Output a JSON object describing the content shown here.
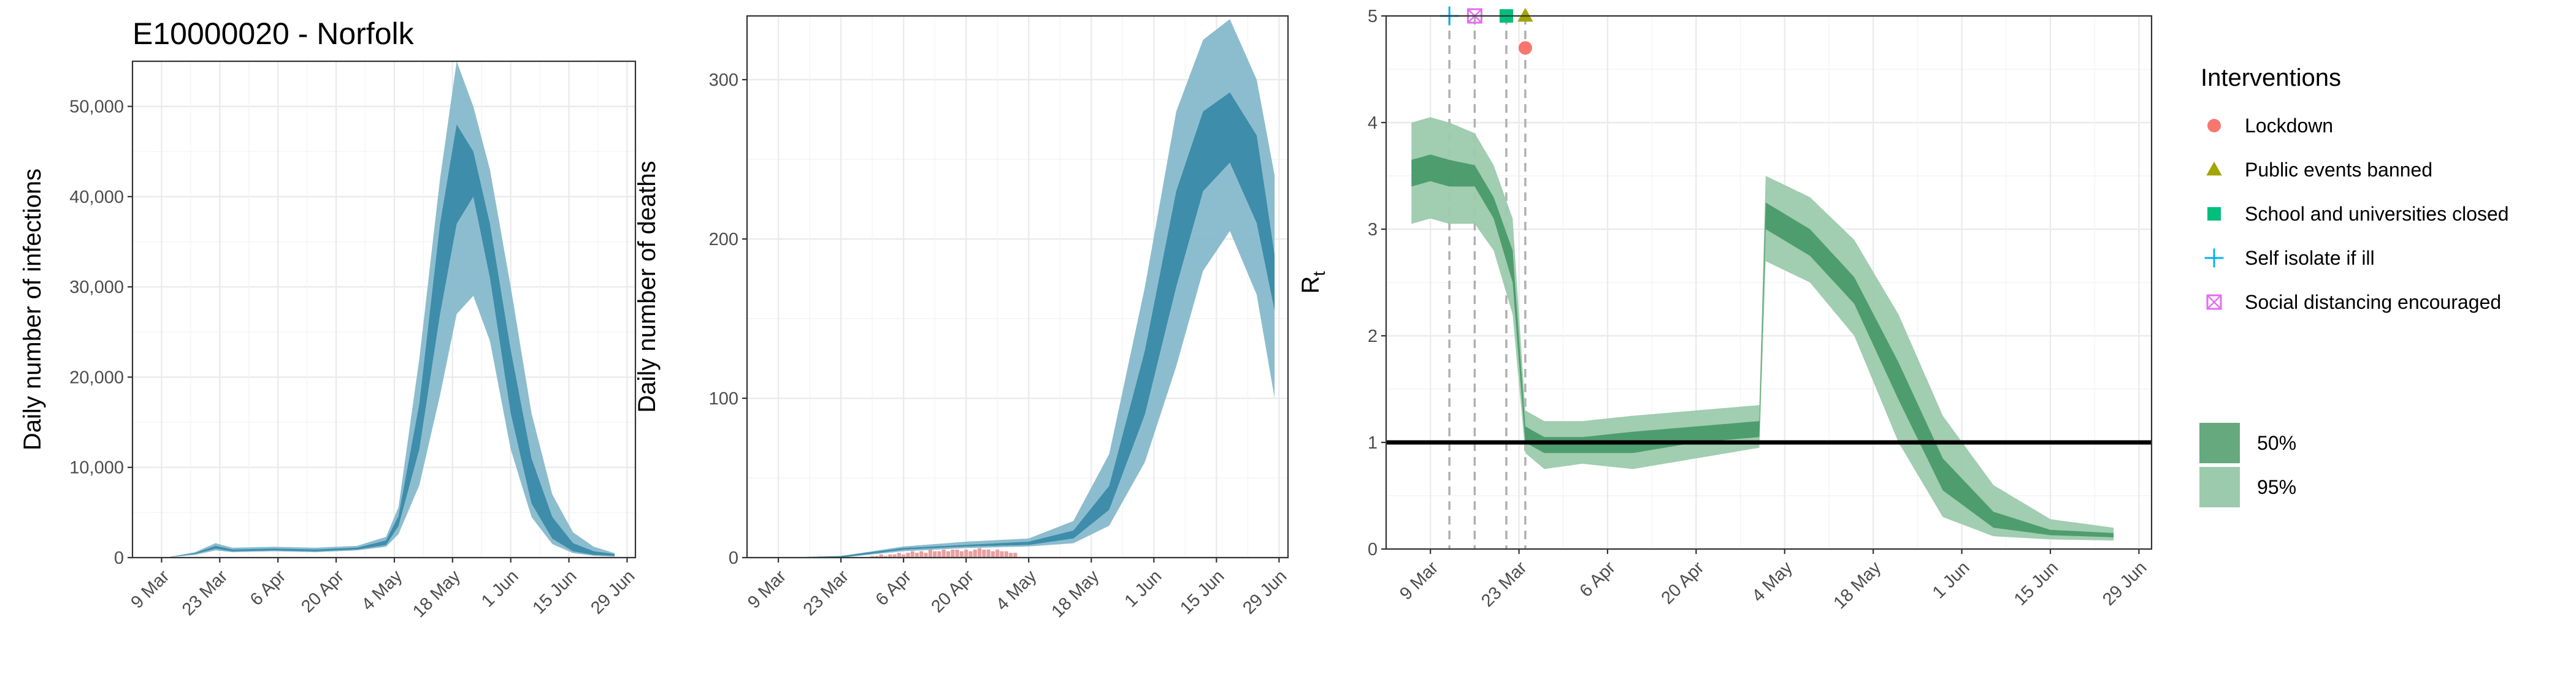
{
  "chart_data": [
    {
      "type": "area",
      "title": "E10000020 - Norfolk",
      "xlabel": "",
      "ylabel": "Daily number of infections",
      "x_ticks": [
        "9 Mar",
        "23 Mar",
        "6 Apr",
        "20 Apr",
        "4 May",
        "18 May",
        "1 Jun",
        "15 Jun",
        "29 Jun"
      ],
      "y_ticks": [
        "0",
        "10,000",
        "20,000",
        "30,000",
        "40,000",
        "50,000"
      ],
      "xlim": [
        "2020-03-02",
        "2020-07-01"
      ],
      "ylim": [
        0,
        55000
      ],
      "grid": true,
      "colors": {
        "inner": "#3a8aa8",
        "outer": "#86b9cc"
      },
      "series": [
        {
          "name": "50%",
          "x": [
            "2020-03-10",
            "2020-03-17",
            "2020-03-22",
            "2020-03-26",
            "2020-04-05",
            "2020-04-15",
            "2020-04-25",
            "2020-05-02",
            "2020-05-05",
            "2020-05-10",
            "2020-05-15",
            "2020-05-19",
            "2020-05-23",
            "2020-05-27",
            "2020-06-01",
            "2020-06-06",
            "2020-06-11",
            "2020-06-16",
            "2020-06-21",
            "2020-06-26"
          ],
          "lower": [
            0,
            400,
            1000,
            700,
            800,
            700,
            900,
            1400,
            3500,
            12000,
            27000,
            37000,
            40000,
            31000,
            16000,
            6000,
            2100,
            700,
            300,
            200
          ],
          "upper": [
            0,
            500,
            1300,
            900,
            1000,
            900,
            1100,
            1900,
            4600,
            17000,
            37000,
            48000,
            45000,
            37000,
            23000,
            11000,
            4500,
            1600,
            700,
            400
          ]
        },
        {
          "name": "95%",
          "x": [
            "2020-03-10",
            "2020-03-17",
            "2020-03-22",
            "2020-03-26",
            "2020-04-05",
            "2020-04-15",
            "2020-04-25",
            "2020-05-02",
            "2020-05-05",
            "2020-05-10",
            "2020-05-15",
            "2020-05-19",
            "2020-05-23",
            "2020-05-27",
            "2020-06-01",
            "2020-06-06",
            "2020-06-11",
            "2020-06-16",
            "2020-06-21",
            "2020-06-26"
          ],
          "lower": [
            0,
            300,
            800,
            600,
            700,
            600,
            800,
            1200,
            2600,
            8000,
            18000,
            27000,
            29000,
            24000,
            12000,
            4500,
            1500,
            500,
            200,
            100
          ],
          "upper": [
            0,
            600,
            1600,
            1100,
            1200,
            1100,
            1300,
            2300,
            5600,
            22000,
            42000,
            55000,
            50000,
            43000,
            30000,
            16000,
            7000,
            2800,
            1200,
            500
          ]
        }
      ]
    },
    {
      "type": "area",
      "title": "",
      "xlabel": "",
      "ylabel": "Daily number of deaths",
      "x_ticks": [
        "9 Mar",
        "23 Mar",
        "6 Apr",
        "20 Apr",
        "4 May",
        "18 May",
        "1 Jun",
        "15 Jun",
        "29 Jun"
      ],
      "y_ticks": [
        "0",
        "100",
        "200",
        "300"
      ],
      "xlim": [
        "2020-03-02",
        "2020-07-01"
      ],
      "ylim": [
        0,
        340
      ],
      "grid": true,
      "colors": {
        "inner": "#3a8aa8",
        "outer": "#86b9cc",
        "observed": "#e8a0a0"
      },
      "observed_deaths": {
        "x_start": "2020-03-30",
        "x_end": "2020-05-01",
        "values": [
          1,
          1,
          2,
          1,
          2,
          2,
          3,
          2,
          3,
          4,
          3,
          4,
          3,
          5,
          4,
          4,
          5,
          4,
          5,
          5,
          4,
          5,
          4,
          5,
          6,
          5,
          5,
          4,
          5,
          4,
          4,
          3,
          3
        ]
      },
      "series": [
        {
          "name": "50%",
          "x": [
            "2020-03-10",
            "2020-03-23",
            "2020-04-06",
            "2020-04-20",
            "2020-05-04",
            "2020-05-14",
            "2020-05-22",
            "2020-05-30",
            "2020-06-06",
            "2020-06-12",
            "2020-06-18",
            "2020-06-24",
            "2020-06-28"
          ],
          "lower": [
            0,
            0,
            5,
            7,
            8,
            12,
            30,
            90,
            170,
            230,
            248,
            210,
            155
          ],
          "upper": [
            0,
            1,
            6,
            8,
            10,
            17,
            45,
            130,
            230,
            280,
            292,
            265,
            190
          ]
        },
        {
          "name": "95%",
          "x": [
            "2020-03-10",
            "2020-03-23",
            "2020-04-06",
            "2020-04-20",
            "2020-05-04",
            "2020-05-14",
            "2020-05-22",
            "2020-05-30",
            "2020-06-06",
            "2020-06-12",
            "2020-06-18",
            "2020-06-24",
            "2020-06-28"
          ],
          "lower": [
            0,
            0,
            4,
            6,
            7,
            9,
            20,
            60,
            120,
            180,
            205,
            165,
            100
          ],
          "upper": [
            0,
            1,
            7,
            10,
            12,
            23,
            65,
            170,
            280,
            325,
            338,
            300,
            240
          ]
        }
      ]
    },
    {
      "type": "area",
      "title": "",
      "xlabel": "",
      "ylabel": "R",
      "ylabel_subscript": "t",
      "x_ticks": [
        "9 Mar",
        "23 Mar",
        "6 Apr",
        "20 Apr",
        "4 May",
        "18 May",
        "1 Jun",
        "15 Jun",
        "29 Jun"
      ],
      "y_ticks": [
        "0",
        "1",
        "2",
        "3",
        "4",
        "5"
      ],
      "xlim": [
        "2020-03-02",
        "2020-07-01"
      ],
      "ylim": [
        0,
        5
      ],
      "grid": true,
      "reference_line": 1,
      "colors": {
        "inner": "#4a9a6a",
        "outer": "#9ccaac"
      },
      "series": [
        {
          "name": "50%",
          "x": [
            "2020-03-06",
            "2020-03-09",
            "2020-03-12",
            "2020-03-16",
            "2020-03-19",
            "2020-03-22",
            "2020-03-24",
            "2020-03-27",
            "2020-04-02",
            "2020-04-10",
            "2020-04-20",
            "2020-04-30",
            "2020-05-01",
            "2020-05-08",
            "2020-05-15",
            "2020-05-22",
            "2020-05-29",
            "2020-06-06",
            "2020-06-15",
            "2020-06-25"
          ],
          "lower": [
            3.4,
            3.45,
            3.4,
            3.4,
            3.1,
            2.5,
            1.0,
            0.9,
            0.9,
            0.9,
            1.0,
            1.05,
            3.0,
            2.75,
            2.3,
            1.4,
            0.55,
            0.2,
            0.13,
            0.11
          ],
          "upper": [
            3.65,
            3.7,
            3.65,
            3.6,
            3.3,
            2.8,
            1.15,
            1.05,
            1.05,
            1.1,
            1.15,
            1.2,
            3.25,
            3.0,
            2.55,
            1.75,
            0.85,
            0.35,
            0.18,
            0.15
          ]
        },
        {
          "name": "95%",
          "x": [
            "2020-03-06",
            "2020-03-09",
            "2020-03-12",
            "2020-03-16",
            "2020-03-19",
            "2020-03-22",
            "2020-03-24",
            "2020-03-27",
            "2020-04-02",
            "2020-04-10",
            "2020-04-20",
            "2020-04-30",
            "2020-05-01",
            "2020-05-08",
            "2020-05-15",
            "2020-05-22",
            "2020-05-29",
            "2020-06-06",
            "2020-06-15",
            "2020-06-25"
          ],
          "lower": [
            3.05,
            3.1,
            3.05,
            3.05,
            2.8,
            2.2,
            0.9,
            0.75,
            0.8,
            0.75,
            0.85,
            0.95,
            2.7,
            2.5,
            2.0,
            1.0,
            0.3,
            0.12,
            0.09,
            0.08
          ],
          "upper": [
            4.0,
            4.05,
            4.0,
            3.9,
            3.6,
            3.1,
            1.3,
            1.2,
            1.2,
            1.25,
            1.3,
            1.35,
            3.5,
            3.3,
            2.9,
            2.2,
            1.25,
            0.6,
            0.28,
            0.2
          ]
        }
      ],
      "interventions": [
        {
          "name": "Lockdown",
          "date": "2020-03-24",
          "color": "#f8766d",
          "shape": "circle",
          "level": 4.7
        },
        {
          "name": "Public events banned",
          "date": "2020-03-24",
          "color": "#a3a500",
          "shape": "triangle",
          "level": 5.0
        },
        {
          "name": "School and universities closed",
          "date": "2020-03-21",
          "color": "#00bf7d",
          "shape": "square",
          "level": 5.0
        },
        {
          "name": "Self isolate if ill",
          "date": "2020-03-12",
          "color": "#00b0f6",
          "shape": "plus",
          "level": 5.0
        },
        {
          "name": "Social distancing encouraged",
          "date": "2020-03-16",
          "color": "#e76bf3",
          "shape": "boxx",
          "level": 5.0
        }
      ]
    }
  ],
  "legend": {
    "title": "Interventions",
    "items": [
      "Lockdown",
      "Public events banned",
      "School and universities closed",
      "Self isolate if ill",
      "Social distancing encouraged"
    ],
    "band_items": [
      {
        "label": "50%",
        "color": "#66a97f"
      },
      {
        "label": "95%",
        "color": "#9ccaac"
      }
    ]
  }
}
